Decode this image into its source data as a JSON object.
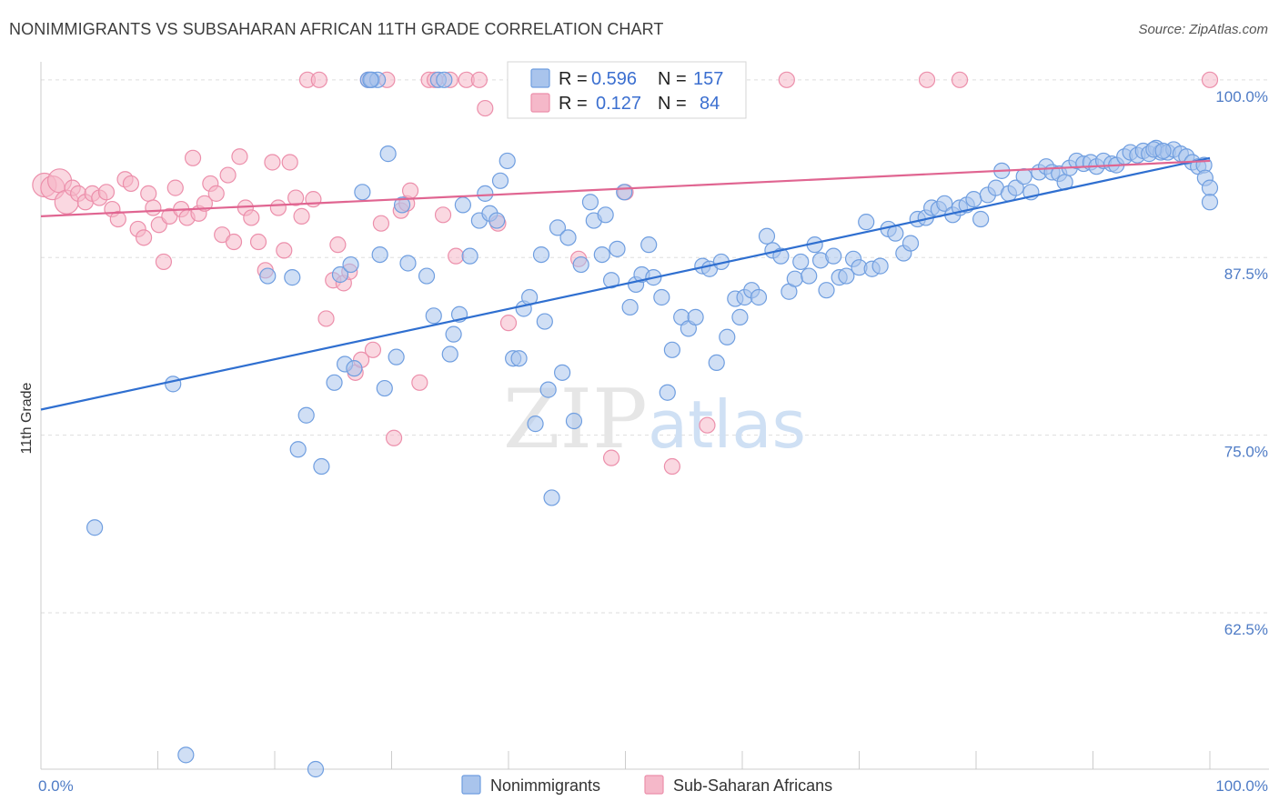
{
  "title": "NONIMMIGRANTS VS SUBSAHARAN AFRICAN 11TH GRADE CORRELATION CHART",
  "source": "Source: ZipAtlas.com",
  "watermark": {
    "zip": "ZIP",
    "atlas": "atlas"
  },
  "colors": {
    "blue_fill": "#a9c4ec",
    "blue_stroke": "#6f9ee0",
    "blue_line": "#2f6fd0",
    "pink_fill": "#f5b8c9",
    "pink_stroke": "#ec8fab",
    "pink_line": "#e06591",
    "tick_text": "#4f7cc6",
    "grid": "#dddddd"
  },
  "legend": {
    "rows": [
      {
        "r_label": "R =",
        "r_value": "0.596",
        "n_label": "N =",
        "n_value": "157"
      },
      {
        "r_label": "R =",
        "r_value": "0.127",
        "n_label": "N =",
        "n_value": "84"
      }
    ]
  },
  "bottom_legend": [
    "Nonimmigrants",
    "Sub-Saharan Africans"
  ],
  "chart_data": {
    "type": "scatter",
    "title": "NONIMMIGRANTS VS SUBSAHARAN AFRICAN 11TH GRADE CORRELATION CHART",
    "xlabel": "",
    "ylabel": "11th Grade",
    "x_tick_labels": [
      "0.0%",
      "100.0%"
    ],
    "y_tick_labels": [
      "100.0%",
      "87.5%",
      "75.0%",
      "62.5%"
    ],
    "y_ticks": [
      100,
      87.5,
      75,
      62.5
    ],
    "xlim": [
      0,
      100
    ],
    "ylim": [
      51.5,
      100.5
    ],
    "grid": true,
    "legend_position": "top-center",
    "series": [
      {
        "name": "Nonimmigrants",
        "stats": {
          "R": 0.596,
          "N": 157
        },
        "trend": {
          "x": [
            0,
            100
          ],
          "y": [
            76.8,
            94.5
          ]
        },
        "points": [
          [
            4.6,
            68.5
          ],
          [
            11.3,
            78.6
          ],
          [
            12.4,
            52.5
          ],
          [
            19.4,
            86.2
          ],
          [
            21.5,
            86.1
          ],
          [
            22.0,
            74.0
          ],
          [
            22.7,
            76.4
          ],
          [
            23.5,
            51.5
          ],
          [
            24.0,
            72.8
          ],
          [
            25.1,
            78.7
          ],
          [
            25.6,
            86.3
          ],
          [
            26.0,
            80.0
          ],
          [
            26.5,
            87.0
          ],
          [
            26.8,
            79.7
          ],
          [
            27.5,
            92.1
          ],
          [
            28.0,
            100.0
          ],
          [
            28.3,
            100.0
          ],
          [
            28.8,
            100.0
          ],
          [
            28.2,
            100.0
          ],
          [
            29.0,
            87.7
          ],
          [
            29.4,
            78.3
          ],
          [
            29.7,
            94.8
          ],
          [
            30.4,
            80.5
          ],
          [
            30.9,
            91.2
          ],
          [
            31.4,
            87.1
          ],
          [
            33.0,
            86.2
          ],
          [
            33.6,
            83.4
          ],
          [
            34.0,
            100.0
          ],
          [
            34.5,
            100.0
          ],
          [
            35.0,
            80.7
          ],
          [
            35.3,
            82.1
          ],
          [
            35.8,
            83.5
          ],
          [
            36.1,
            91.2
          ],
          [
            36.7,
            87.6
          ],
          [
            37.5,
            90.1
          ],
          [
            38.0,
            92.0
          ],
          [
            38.4,
            90.6
          ],
          [
            39.0,
            90.1
          ],
          [
            39.3,
            92.9
          ],
          [
            39.9,
            94.3
          ],
          [
            40.4,
            80.4
          ],
          [
            40.9,
            80.4
          ],
          [
            41.3,
            83.9
          ],
          [
            41.8,
            84.7
          ],
          [
            42.3,
            75.8
          ],
          [
            42.8,
            87.7
          ],
          [
            43.1,
            83.0
          ],
          [
            43.4,
            78.2
          ],
          [
            43.7,
            70.6
          ],
          [
            44.2,
            89.6
          ],
          [
            44.6,
            79.4
          ],
          [
            45.1,
            88.9
          ],
          [
            45.6,
            76.0
          ],
          [
            46.2,
            87.0
          ],
          [
            47.0,
            91.4
          ],
          [
            47.3,
            90.1
          ],
          [
            48.0,
            87.7
          ],
          [
            48.3,
            90.5
          ],
          [
            48.8,
            85.9
          ],
          [
            49.3,
            88.1
          ],
          [
            49.9,
            92.1
          ],
          [
            50.4,
            84.0
          ],
          [
            50.9,
            85.6
          ],
          [
            51.4,
            86.3
          ],
          [
            52.0,
            88.4
          ],
          [
            52.4,
            86.1
          ],
          [
            53.1,
            84.7
          ],
          [
            53.6,
            78.0
          ],
          [
            54.0,
            81.0
          ],
          [
            54.8,
            83.3
          ],
          [
            55.4,
            82.5
          ],
          [
            56.0,
            83.3
          ],
          [
            56.6,
            86.9
          ],
          [
            57.2,
            86.7
          ],
          [
            57.8,
            80.1
          ],
          [
            58.2,
            87.2
          ],
          [
            58.7,
            81.9
          ],
          [
            59.4,
            84.6
          ],
          [
            59.8,
            83.3
          ],
          [
            60.2,
            84.7
          ],
          [
            60.8,
            85.2
          ],
          [
            61.4,
            84.7
          ],
          [
            62.1,
            89.0
          ],
          [
            62.6,
            88.0
          ],
          [
            63.3,
            87.6
          ],
          [
            64.0,
            85.1
          ],
          [
            64.5,
            86.0
          ],
          [
            65.0,
            87.2
          ],
          [
            65.7,
            86.2
          ],
          [
            66.2,
            88.4
          ],
          [
            66.7,
            87.3
          ],
          [
            67.2,
            85.2
          ],
          [
            67.8,
            87.6
          ],
          [
            68.3,
            86.1
          ],
          [
            68.9,
            86.2
          ],
          [
            69.5,
            87.4
          ],
          [
            70.0,
            86.8
          ],
          [
            70.6,
            90.0
          ],
          [
            71.1,
            86.7
          ],
          [
            71.8,
            86.9
          ],
          [
            72.5,
            89.5
          ],
          [
            73.1,
            89.2
          ],
          [
            73.8,
            87.8
          ],
          [
            74.4,
            88.5
          ],
          [
            75.0,
            90.2
          ],
          [
            75.7,
            90.3
          ],
          [
            76.2,
            91.0
          ],
          [
            76.8,
            90.9
          ],
          [
            77.3,
            91.3
          ],
          [
            78.0,
            90.5
          ],
          [
            78.6,
            91.0
          ],
          [
            79.2,
            91.2
          ],
          [
            79.8,
            91.6
          ],
          [
            80.4,
            90.2
          ],
          [
            81.0,
            91.9
          ],
          [
            81.7,
            92.4
          ],
          [
            82.2,
            93.6
          ],
          [
            82.8,
            92.0
          ],
          [
            83.4,
            92.4
          ],
          [
            84.1,
            93.2
          ],
          [
            84.7,
            92.1
          ],
          [
            85.4,
            93.5
          ],
          [
            86.0,
            93.9
          ],
          [
            86.5,
            93.5
          ],
          [
            87.1,
            93.4
          ],
          [
            87.6,
            92.8
          ],
          [
            88.0,
            93.8
          ],
          [
            88.6,
            94.3
          ],
          [
            89.2,
            94.1
          ],
          [
            89.8,
            94.2
          ],
          [
            90.3,
            93.9
          ],
          [
            90.9,
            94.3
          ],
          [
            91.6,
            94.1
          ],
          [
            92.0,
            94.0
          ],
          [
            92.7,
            94.6
          ],
          [
            93.2,
            94.9
          ],
          [
            93.8,
            94.7
          ],
          [
            94.3,
            95.0
          ],
          [
            94.8,
            94.8
          ],
          [
            95.4,
            95.2
          ],
          [
            95.8,
            94.9
          ],
          [
            96.4,
            94.9
          ],
          [
            96.9,
            95.1
          ],
          [
            97.5,
            94.8
          ],
          [
            98.0,
            94.6
          ],
          [
            98.5,
            94.2
          ],
          [
            99.0,
            93.9
          ],
          [
            99.5,
            94.0
          ],
          [
            99.6,
            93.1
          ],
          [
            100.0,
            92.4
          ],
          [
            100.0,
            91.4
          ],
          [
            95.2,
            95.1
          ],
          [
            96.0,
            95.0
          ]
        ]
      },
      {
        "name": "Sub-Saharan Africans",
        "stats": {
          "R": 0.127,
          "N": 84
        },
        "trend": {
          "x": [
            0,
            100
          ],
          "y": [
            90.4,
            94.3
          ]
        },
        "points": [
          [
            0.3,
            92.6
          ],
          [
            1.0,
            92.4
          ],
          [
            1.6,
            92.9
          ],
          [
            2.2,
            91.4
          ],
          [
            2.7,
            92.4
          ],
          [
            3.2,
            92.0
          ],
          [
            3.8,
            91.4
          ],
          [
            4.4,
            92.0
          ],
          [
            5.0,
            91.7
          ],
          [
            5.6,
            92.1
          ],
          [
            6.1,
            90.9
          ],
          [
            6.6,
            90.2
          ],
          [
            7.2,
            93.0
          ],
          [
            7.7,
            92.7
          ],
          [
            8.3,
            89.5
          ],
          [
            8.8,
            88.9
          ],
          [
            9.2,
            92.0
          ],
          [
            9.6,
            91.0
          ],
          [
            10.1,
            89.8
          ],
          [
            10.5,
            87.2
          ],
          [
            11.0,
            90.4
          ],
          [
            11.5,
            92.4
          ],
          [
            12.0,
            90.9
          ],
          [
            12.5,
            90.3
          ],
          [
            13.0,
            94.5
          ],
          [
            13.5,
            90.6
          ],
          [
            14.0,
            91.3
          ],
          [
            14.5,
            92.7
          ],
          [
            15.0,
            92.0
          ],
          [
            15.5,
            89.1
          ],
          [
            16.0,
            93.3
          ],
          [
            16.5,
            88.6
          ],
          [
            17.0,
            94.6
          ],
          [
            17.5,
            91.0
          ],
          [
            18.0,
            90.3
          ],
          [
            18.6,
            88.6
          ],
          [
            19.2,
            86.6
          ],
          [
            19.8,
            94.2
          ],
          [
            20.3,
            91.0
          ],
          [
            20.8,
            88.0
          ],
          [
            21.3,
            94.2
          ],
          [
            21.8,
            91.7
          ],
          [
            22.3,
            90.4
          ],
          [
            22.8,
            100.0
          ],
          [
            23.3,
            91.6
          ],
          [
            23.8,
            100.0
          ],
          [
            24.4,
            83.2
          ],
          [
            25.0,
            85.9
          ],
          [
            25.4,
            88.4
          ],
          [
            25.9,
            85.7
          ],
          [
            26.4,
            86.5
          ],
          [
            26.9,
            79.4
          ],
          [
            27.4,
            80.3
          ],
          [
            28.0,
            100.0
          ],
          [
            28.4,
            81.0
          ],
          [
            29.1,
            89.9
          ],
          [
            29.6,
            100.0
          ],
          [
            30.2,
            74.8
          ],
          [
            30.8,
            90.8
          ],
          [
            31.3,
            91.3
          ],
          [
            31.6,
            92.2
          ],
          [
            32.4,
            78.7
          ],
          [
            33.2,
            100.0
          ],
          [
            33.7,
            100.0
          ],
          [
            34.4,
            90.5
          ],
          [
            35.0,
            100.0
          ],
          [
            35.5,
            87.6
          ],
          [
            36.4,
            100.0
          ],
          [
            37.5,
            100.0
          ],
          [
            38.0,
            98.0
          ],
          [
            39.1,
            89.9
          ],
          [
            40.0,
            82.9
          ],
          [
            41.0,
            100.0
          ],
          [
            42.0,
            100.0
          ],
          [
            43.5,
            100.0
          ],
          [
            46.0,
            87.4
          ],
          [
            48.8,
            73.4
          ],
          [
            50.0,
            92.1
          ],
          [
            51.0,
            100.0
          ],
          [
            54.0,
            72.8
          ],
          [
            55.0,
            100.0
          ],
          [
            57.0,
            75.7
          ],
          [
            63.8,
            100.0
          ],
          [
            75.8,
            100.0
          ],
          [
            78.6,
            100.0
          ],
          [
            100.0,
            100.0
          ]
        ]
      }
    ]
  }
}
